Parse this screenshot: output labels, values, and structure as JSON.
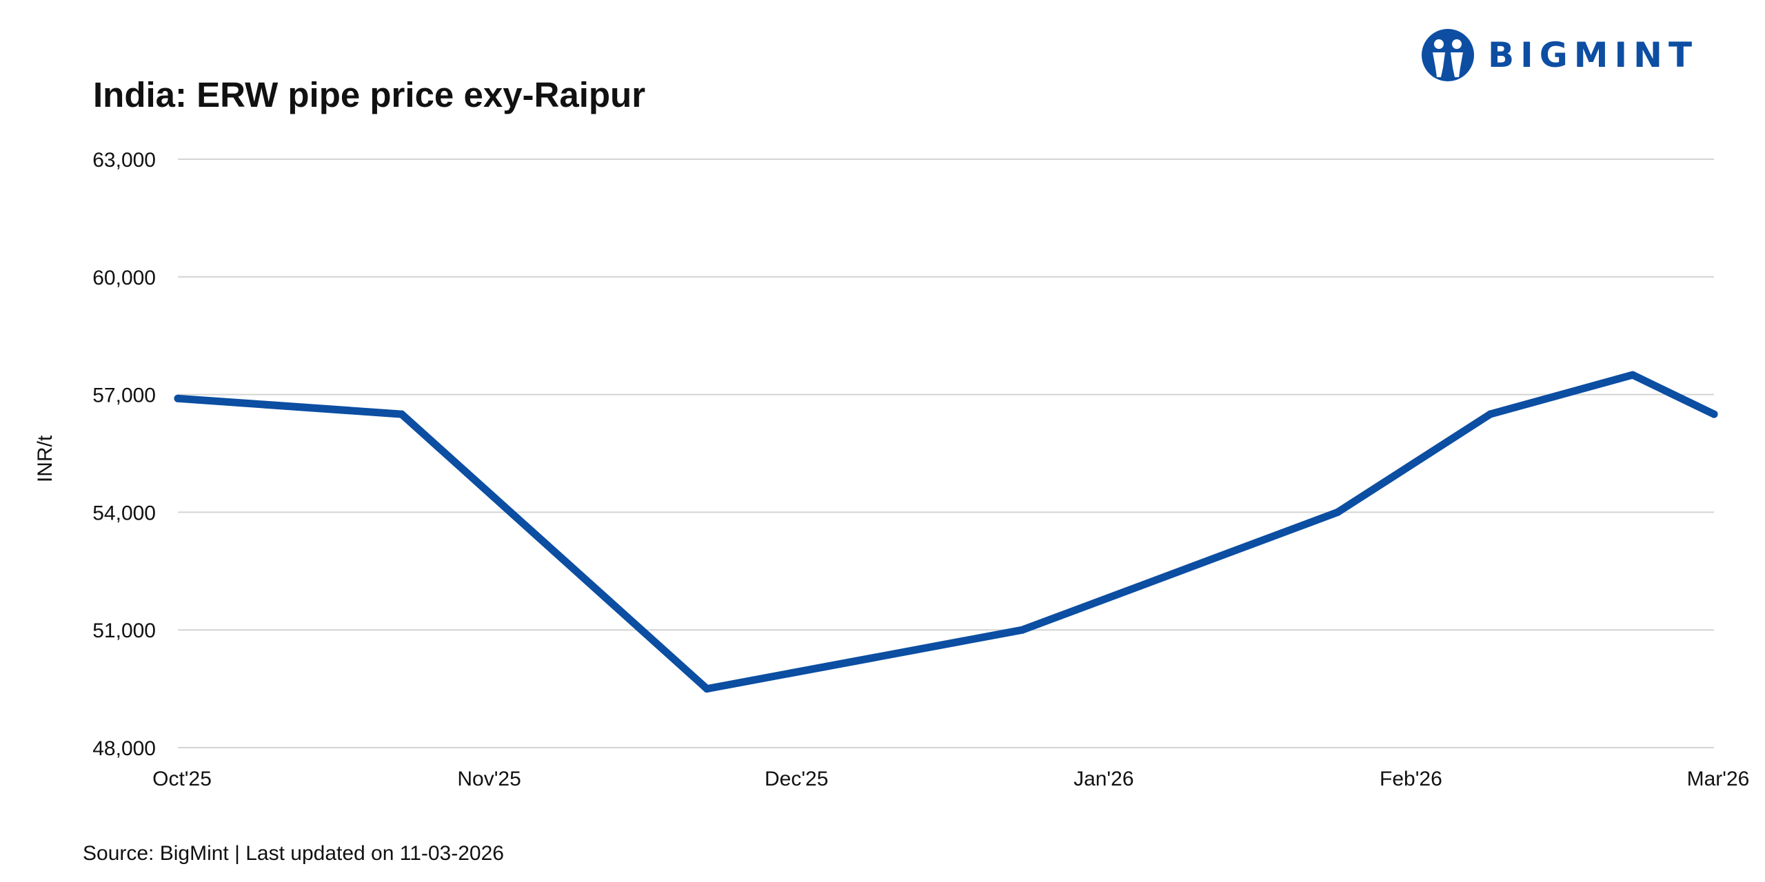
{
  "title": "India: ERW pipe price exy-Raipur",
  "logo": {
    "text": "BIGMINT",
    "icon": "bigmint-people-icon",
    "color": "#0d4ea2"
  },
  "source": "Source: BigMint | Last updated on 11-03-2026",
  "chart_data": {
    "type": "line",
    "title": "India: ERW pipe price exy-Raipur",
    "xlabel": "",
    "ylabel": "INR/t",
    "ylim": [
      48000,
      63000
    ],
    "yticks": [
      48000,
      51000,
      54000,
      57000,
      60000,
      63000
    ],
    "ytick_labels": [
      "48,000",
      "51,000",
      "54,000",
      "57,000",
      "60,000",
      "63,000"
    ],
    "xticks": [
      "Oct'25",
      "Nov'25",
      "Dec'25",
      "Jan'26",
      "Feb'26",
      "Mar'26"
    ],
    "grid": "horizontal",
    "series": [
      {
        "color": "#0b4ea2",
        "x": [
          "2025-10-01",
          "2025-10-23",
          "2025-11-22",
          "2025-12-23",
          "2026-01-23",
          "2026-02-07",
          "2026-02-21",
          "2026-03-01"
        ],
        "values": [
          56900,
          56500,
          49500,
          51000,
          54000,
          56500,
          57500,
          56500
        ]
      }
    ]
  }
}
